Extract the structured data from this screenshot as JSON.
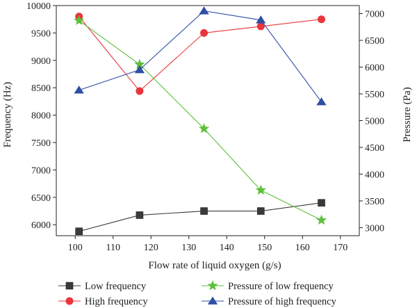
{
  "chart_data": {
    "type": "line",
    "xlabel": "Flow rate of liquid oxygen (g/s)",
    "ylabel_left": "Frequency (Hz)",
    "ylabel_right": "Pressure (Pa)",
    "x_ticks": [
      100,
      110,
      120,
      130,
      140,
      150,
      160,
      170
    ],
    "xlim": [
      95,
      175
    ],
    "y_left_ticks": [
      6000,
      6500,
      7000,
      7500,
      8000,
      8500,
      9000,
      9500,
      10000
    ],
    "ylim_left": [
      5800,
      10000
    ],
    "y_right_ticks": [
      3000,
      3500,
      4000,
      4500,
      5000,
      5500,
      6000,
      6500,
      7000
    ],
    "ylim_right": [
      2850,
      7150
    ],
    "grid": false,
    "legend_position": "bottom",
    "series": [
      {
        "name": "Low frequency",
        "axis": "left",
        "marker": "square",
        "color": "#3a3a3a",
        "x": [
          101,
          117,
          134,
          149,
          165
        ],
        "y": [
          5880,
          6175,
          6250,
          6250,
          6400
        ]
      },
      {
        "name": "High frequency",
        "axis": "left",
        "marker": "circle",
        "color": "#e8363b",
        "x": [
          101,
          117,
          134,
          149,
          165
        ],
        "y": [
          9800,
          8440,
          9500,
          9620,
          9750
        ]
      },
      {
        "name": "Pressure of low frequency",
        "axis": "right",
        "marker": "star",
        "color": "#5dbf3a",
        "x": [
          101,
          117,
          134,
          149,
          165
        ],
        "y": [
          6870,
          6050,
          4850,
          3700,
          3140
        ]
      },
      {
        "name": "Pressure of high frequency",
        "axis": "right",
        "marker": "triangle",
        "color": "#2e4fa3",
        "x": [
          101,
          117,
          134,
          149,
          165
        ],
        "y": [
          5570,
          5950,
          7050,
          6880,
          5350
        ]
      }
    ]
  }
}
